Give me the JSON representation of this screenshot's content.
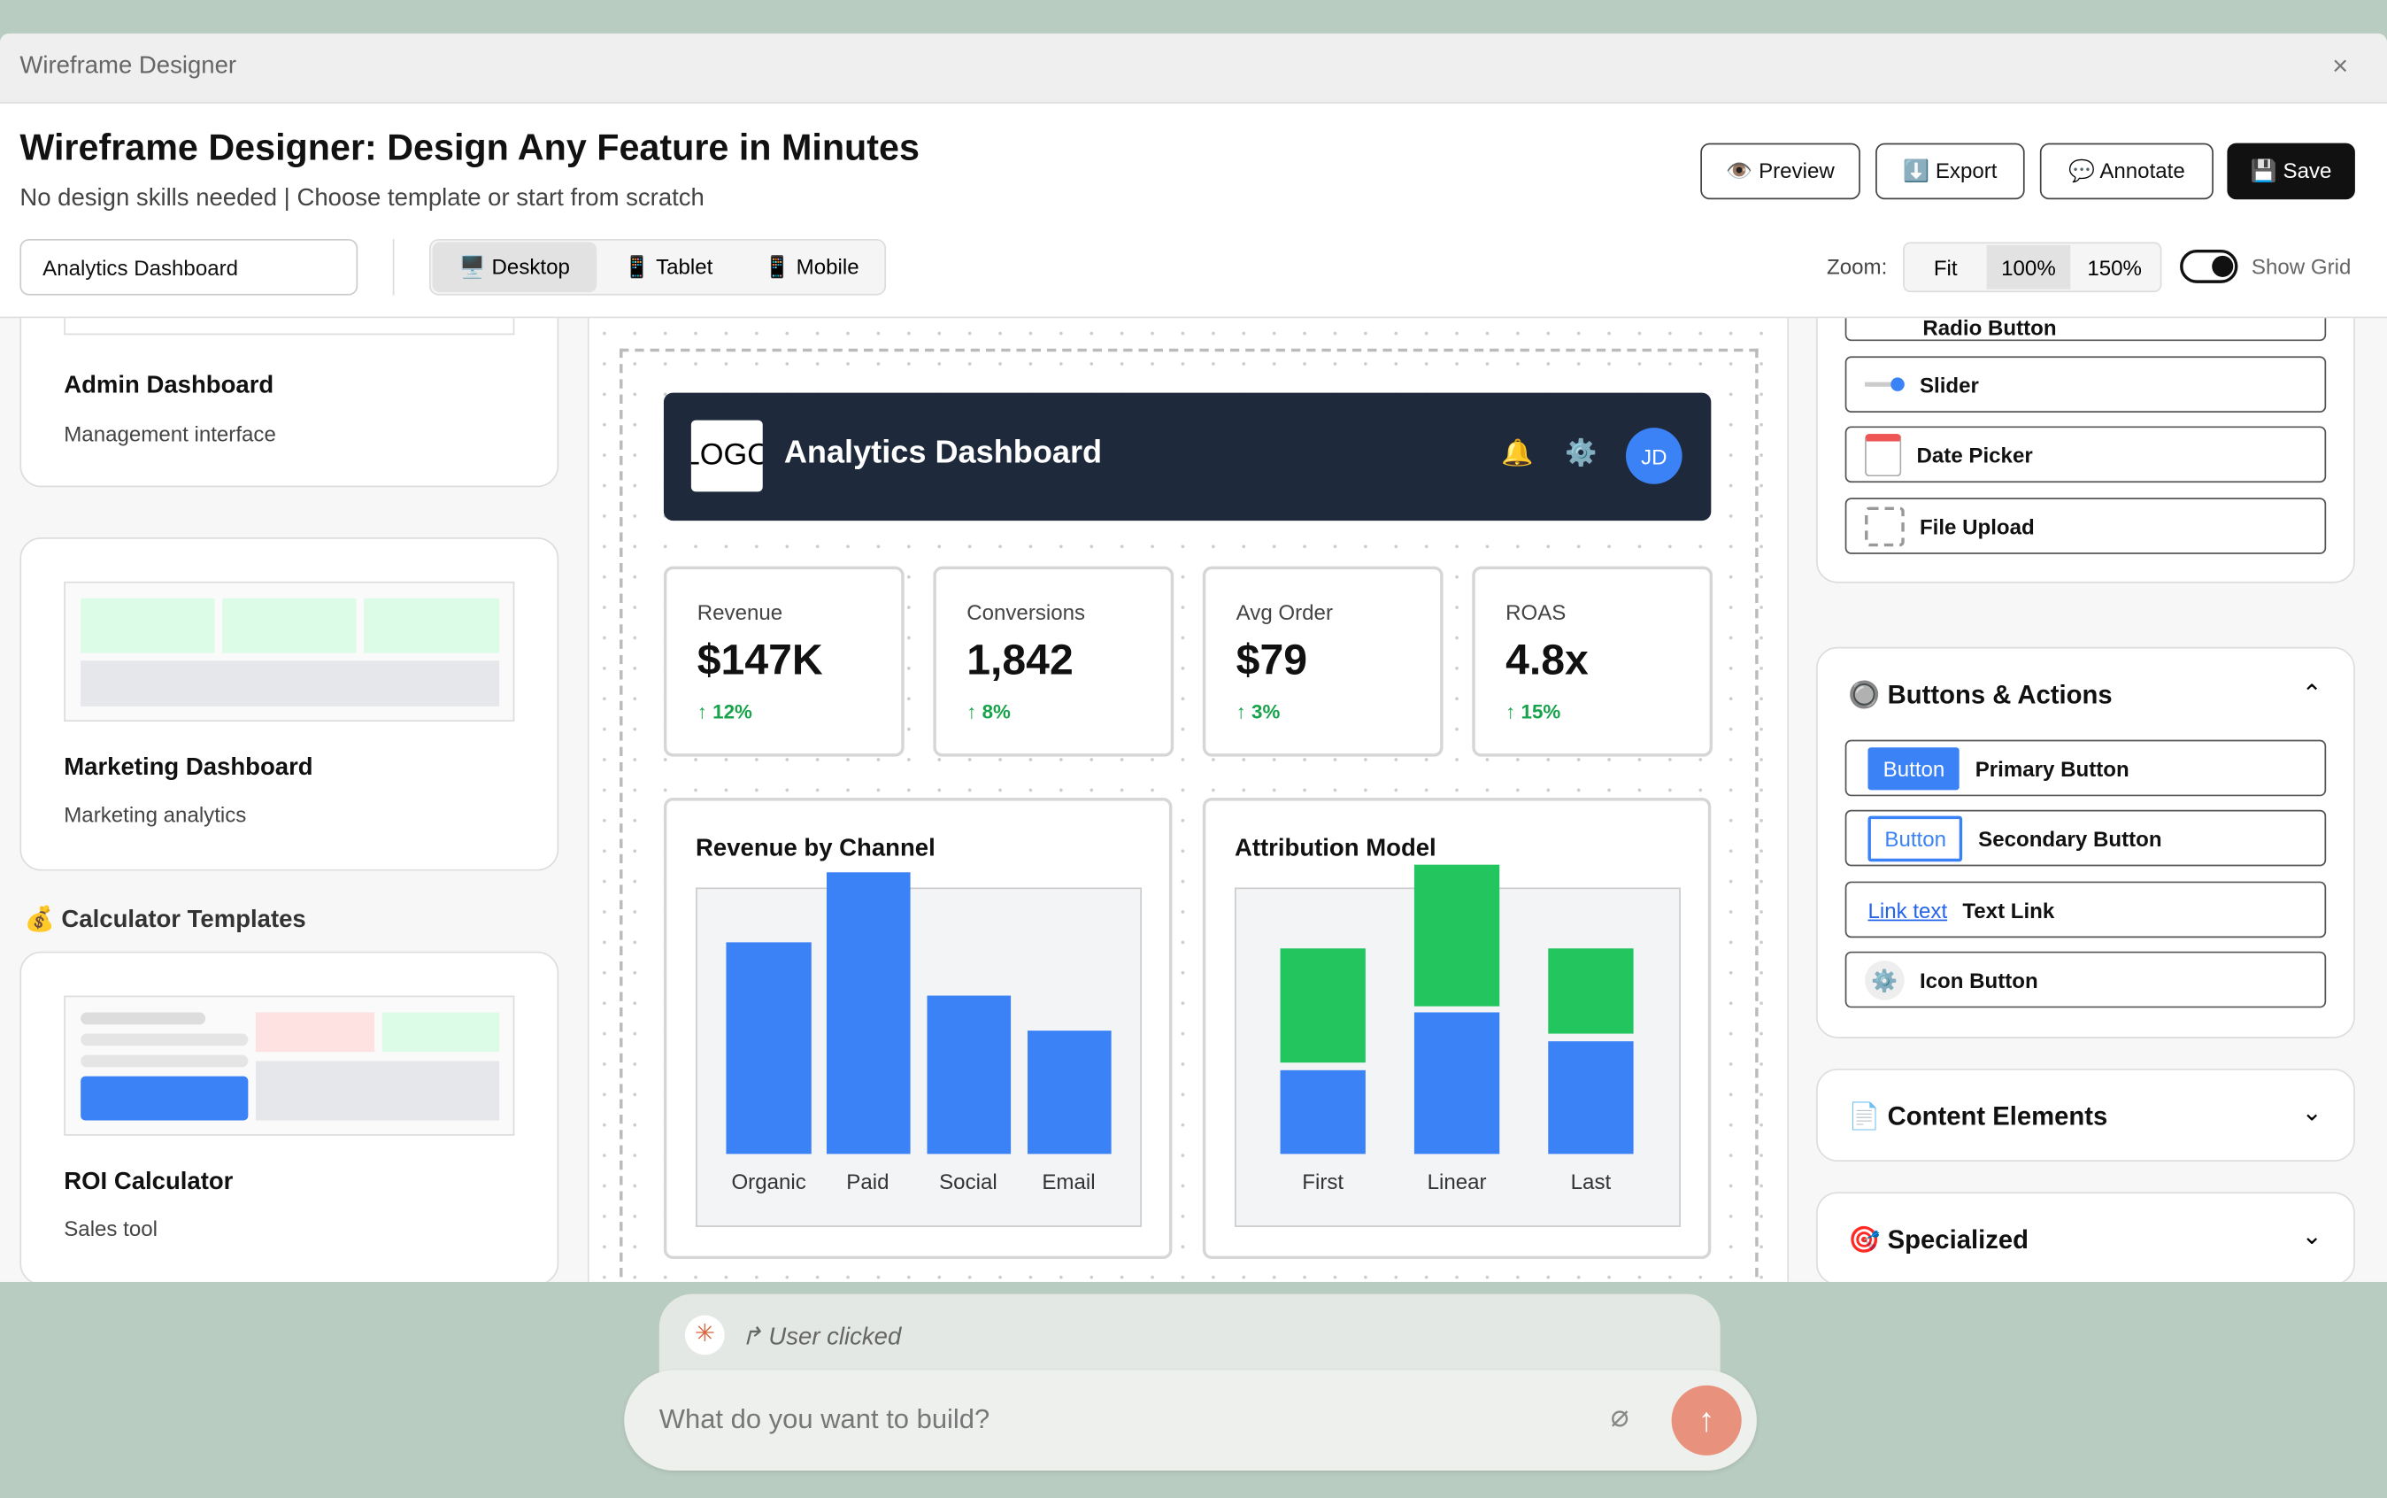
{
  "window": {
    "title": "Wireframe Designer"
  },
  "header": {
    "title": "Wireframe Designer: Design Any Feature in Minutes",
    "subtitle": "No design skills needed | Choose template or start from scratch"
  },
  "actions": [
    "👁️ Preview",
    "⬇️ Export",
    "💬 Annotate",
    "💾 Save"
  ],
  "template_select": "Analytics Dashboard",
  "devices": [
    "🖥️ Desktop",
    "📱 Tablet",
    "📱 Mobile"
  ],
  "zoom": {
    "label": "Zoom:",
    "options": [
      "Fit",
      "100%",
      "150%"
    ]
  },
  "show_grid": "Show Grid",
  "templates": [
    {
      "name": "Admin Dashboard",
      "description": "Management interface"
    },
    {
      "name": "Marketing Dashboard",
      "description": "Marketing analytics"
    }
  ],
  "calculator_section": {
    "title": "💰 Calculator Templates",
    "templates": [
      {
        "name": "ROI Calculator",
        "description": "Sales tool"
      }
    ]
  },
  "canvas": {
    "logo": "LOGO",
    "title": "Analytics Dashboard",
    "icons": [
      "🔔",
      "⚙️"
    ],
    "avatar": "JD",
    "kpis": [
      {
        "label": "Revenue",
        "value": "$147K",
        "change": "↑ 12%"
      },
      {
        "label": "Conversions",
        "value": "1,842",
        "change": "↑ 8%"
      },
      {
        "label": "Avg Order",
        "value": "$79",
        "change": "↑ 3%"
      },
      {
        "label": "ROAS",
        "value": "4.8x",
        "change": "↑ 15%"
      }
    ],
    "charts": [
      {
        "title": "Revenue by Channel",
        "categories": [
          "Organic",
          "Paid",
          "Social",
          "Email"
        ]
      },
      {
        "title": "Attribution Model",
        "categories": [
          "First",
          "Linear",
          "Last"
        ]
      }
    ]
  },
  "components": {
    "inputs": [
      "Radio Button",
      "Slider",
      "Date Picker",
      "File Upload"
    ],
    "sections": [
      {
        "icon": "🔘",
        "title": "Buttons & Actions",
        "items": [
          {
            "preview": "Button",
            "label": "Primary Button"
          },
          {
            "preview": "Button",
            "label": "Secondary Button"
          },
          {
            "preview": "Link text",
            "label": "Text Link"
          },
          {
            "preview": "⚙️",
            "label": "Icon Button"
          }
        ]
      },
      {
        "icon": "📄",
        "title": "Content Elements"
      },
      {
        "icon": "🎯",
        "title": "Specialized"
      }
    ]
  },
  "chat": {
    "activity": "User clicked",
    "placeholder": "What do you want to build?"
  }
}
